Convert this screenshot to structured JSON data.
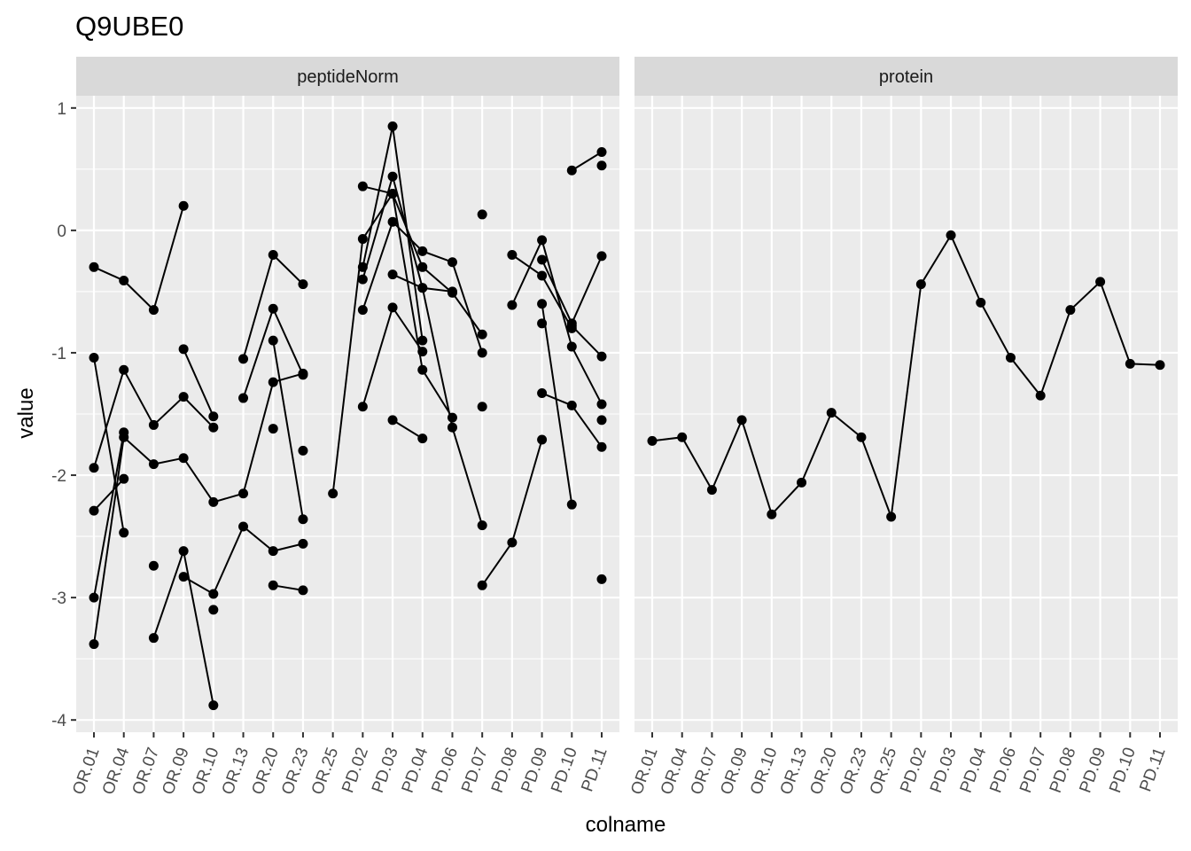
{
  "chart_data": {
    "type": "line",
    "title": "Q9UBE0",
    "xlabel": "colname",
    "ylabel": "value",
    "ylim": [
      -4.1,
      1.1
    ],
    "yticks": [
      1,
      0,
      -1,
      -2,
      -3,
      -4
    ],
    "ytick_labels": [
      "1",
      "0",
      "-1",
      "-2",
      "-3",
      "-4"
    ],
    "categories": [
      "OR.01",
      "OR.04",
      "OR.07",
      "OR.09",
      "OR.10",
      "OR.13",
      "OR.20",
      "OR.23",
      "OR.25",
      "PD.02",
      "PD.03",
      "PD.04",
      "PD.06",
      "PD.07",
      "PD.08",
      "PD.09",
      "PD.10",
      "PD.11"
    ],
    "grid": true,
    "legend": "none",
    "colors": {
      "panel_bg": "#ebebeb",
      "strip_bg": "#d9d9d9",
      "grid": "#ffffff",
      "series": "#000000"
    },
    "panels": [
      {
        "name": "peptideNorm",
        "series": [
          {
            "values": [
              -0.3,
              -0.41,
              -0.65,
              0.2,
              null,
              null,
              null,
              null,
              null,
              null,
              null,
              null,
              null,
              null,
              null,
              null,
              null,
              null
            ]
          },
          {
            "values": [
              -1.04,
              -2.47,
              null,
              null,
              null,
              null,
              null,
              null,
              null,
              null,
              null,
              null,
              null,
              null,
              null,
              null,
              null,
              null
            ]
          },
          {
            "values": [
              -1.94,
              -1.14,
              -1.59,
              -1.36,
              -1.61,
              null,
              null,
              null,
              null,
              null,
              null,
              null,
              null,
              null,
              null,
              null,
              null,
              null
            ]
          },
          {
            "values": [
              -2.29,
              -2.03,
              null,
              null,
              null,
              null,
              null,
              null,
              null,
              null,
              null,
              null,
              null,
              null,
              null,
              null,
              null,
              null
            ]
          },
          {
            "values": [
              -3.0,
              -1.65,
              null,
              null,
              null,
              null,
              null,
              null,
              null,
              null,
              null,
              null,
              null,
              null,
              null,
              null,
              null,
              null
            ]
          },
          {
            "values": [
              -3.38,
              -1.69,
              -1.91,
              -1.86,
              -2.22,
              -2.15,
              -1.24,
              -1.17,
              null,
              null,
              null,
              null,
              null,
              null,
              null,
              null,
              null,
              null
            ]
          },
          {
            "values": [
              null,
              null,
              -2.74,
              null,
              null,
              null,
              null,
              null,
              null,
              null,
              null,
              null,
              null,
              null,
              null,
              null,
              null,
              null
            ]
          },
          {
            "values": [
              null,
              null,
              -3.33,
              -2.62,
              -3.88,
              null,
              null,
              null,
              null,
              null,
              null,
              null,
              null,
              null,
              null,
              null,
              null,
              null
            ]
          },
          {
            "values": [
              null,
              null,
              null,
              -0.97,
              -1.52,
              null,
              null,
              null,
              null,
              null,
              null,
              null,
              null,
              null,
              null,
              null,
              null,
              null
            ]
          },
          {
            "values": [
              null,
              null,
              null,
              -2.83,
              -2.97,
              -2.42,
              -2.62,
              -2.56,
              null,
              null,
              null,
              null,
              null,
              null,
              null,
              null,
              null,
              null
            ]
          },
          {
            "values": [
              null,
              null,
              null,
              null,
              -3.1,
              null,
              null,
              null,
              null,
              null,
              null,
              null,
              null,
              null,
              null,
              null,
              null,
              null
            ]
          },
          {
            "values": [
              null,
              null,
              null,
              null,
              null,
              -1.05,
              -0.2,
              -0.44,
              null,
              null,
              null,
              null,
              null,
              null,
              null,
              null,
              null,
              null
            ]
          },
          {
            "values": [
              null,
              null,
              null,
              null,
              null,
              -1.37,
              -0.64,
              -1.18,
              null,
              null,
              null,
              null,
              null,
              null,
              null,
              null,
              null,
              null
            ]
          },
          {
            "values": [
              null,
              null,
              null,
              null,
              null,
              null,
              -0.9,
              -2.36,
              null,
              null,
              null,
              null,
              null,
              null,
              null,
              null,
              null,
              null
            ]
          },
          {
            "values": [
              null,
              null,
              null,
              null,
              null,
              null,
              -1.62,
              null,
              null,
              null,
              null,
              null,
              null,
              null,
              null,
              null,
              null,
              null
            ]
          },
          {
            "values": [
              null,
              null,
              null,
              null,
              null,
              null,
              -2.9,
              -2.94,
              null,
              null,
              null,
              null,
              null,
              null,
              null,
              null,
              null,
              null
            ]
          },
          {
            "values": [
              null,
              null,
              null,
              null,
              null,
              null,
              null,
              -1.8,
              null,
              null,
              null,
              null,
              null,
              null,
              null,
              null,
              null,
              null
            ]
          },
          {
            "values": [
              null,
              null,
              null,
              null,
              null,
              null,
              null,
              null,
              -2.15,
              -0.07,
              0.3,
              -0.3,
              -0.51,
              -0.85,
              null,
              null,
              null,
              null
            ]
          },
          {
            "values": [
              null,
              null,
              null,
              null,
              null,
              null,
              null,
              null,
              null,
              0.36,
              0.3,
              -1.14,
              -1.53,
              null,
              null,
              null,
              null,
              null
            ]
          },
          {
            "values": [
              null,
              null,
              null,
              null,
              null,
              null,
              null,
              null,
              null,
              -0.3,
              0.85,
              -0.9,
              null,
              null,
              null,
              null,
              null,
              null
            ]
          },
          {
            "values": [
              null,
              null,
              null,
              null,
              null,
              null,
              null,
              null,
              null,
              -0.4,
              0.44,
              -0.47,
              -0.5,
              null,
              null,
              null,
              null,
              null
            ]
          },
          {
            "values": [
              null,
              null,
              null,
              null,
              null,
              null,
              null,
              null,
              null,
              -0.65,
              0.07,
              -0.17,
              -0.26,
              -1.0,
              null,
              null,
              null,
              null
            ]
          },
          {
            "values": [
              null,
              null,
              null,
              null,
              null,
              null,
              null,
              null,
              null,
              -1.44,
              -0.63,
              -0.99,
              null,
              null,
              null,
              null,
              null,
              null
            ]
          },
          {
            "values": [
              null,
              null,
              null,
              null,
              null,
              null,
              null,
              null,
              null,
              null,
              -0.36,
              -0.47,
              -1.61,
              -2.41,
              null,
              null,
              null,
              null
            ]
          },
          {
            "values": [
              null,
              null,
              null,
              null,
              null,
              null,
              null,
              null,
              null,
              null,
              -1.55,
              -1.7,
              null,
              null,
              null,
              null,
              null,
              null
            ]
          },
          {
            "values": [
              null,
              null,
              null,
              null,
              null,
              null,
              null,
              null,
              null,
              null,
              null,
              null,
              null,
              0.13,
              null,
              null,
              null,
              null
            ]
          },
          {
            "values": [
              null,
              null,
              null,
              null,
              null,
              null,
              null,
              null,
              null,
              null,
              null,
              null,
              null,
              -1.44,
              null,
              null,
              null,
              null
            ]
          },
          {
            "values": [
              null,
              null,
              null,
              null,
              null,
              null,
              null,
              null,
              null,
              null,
              null,
              null,
              null,
              -2.9,
              -2.55,
              -1.71,
              null,
              null
            ]
          },
          {
            "values": [
              null,
              null,
              null,
              null,
              null,
              null,
              null,
              null,
              null,
              null,
              null,
              null,
              null,
              null,
              -0.2,
              -0.37,
              -0.8,
              null
            ]
          },
          {
            "values": [
              null,
              null,
              null,
              null,
              null,
              null,
              null,
              null,
              null,
              null,
              null,
              null,
              null,
              null,
              -0.61,
              -0.08,
              -0.95,
              -1.42
            ]
          },
          {
            "values": [
              null,
              null,
              null,
              null,
              null,
              null,
              null,
              null,
              null,
              null,
              null,
              null,
              null,
              null,
              null,
              -0.24,
              -0.76,
              -0.21
            ]
          },
          {
            "values": [
              null,
              null,
              null,
              null,
              null,
              null,
              null,
              null,
              null,
              null,
              null,
              null,
              null,
              null,
              null,
              -0.6,
              -2.24,
              null
            ]
          },
          {
            "values": [
              null,
              null,
              null,
              null,
              null,
              null,
              null,
              null,
              null,
              null,
              null,
              null,
              null,
              null,
              null,
              -0.76,
              null,
              null
            ]
          },
          {
            "values": [
              null,
              null,
              null,
              null,
              null,
              null,
              null,
              null,
              null,
              null,
              null,
              null,
              null,
              null,
              null,
              -1.33,
              -1.43,
              -1.77
            ]
          },
          {
            "values": [
              null,
              null,
              null,
              null,
              null,
              null,
              null,
              null,
              null,
              null,
              null,
              null,
              null,
              null,
              null,
              null,
              0.49,
              0.64
            ]
          },
          {
            "values": [
              null,
              null,
              null,
              null,
              null,
              null,
              null,
              null,
              null,
              null,
              null,
              null,
              null,
              null,
              null,
              null,
              -0.78,
              -1.03
            ]
          },
          {
            "values": [
              null,
              null,
              null,
              null,
              null,
              null,
              null,
              null,
              null,
              null,
              null,
              null,
              null,
              null,
              null,
              null,
              null,
              0.53
            ]
          },
          {
            "values": [
              null,
              null,
              null,
              null,
              null,
              null,
              null,
              null,
              null,
              null,
              null,
              null,
              null,
              null,
              null,
              null,
              null,
              -1.55
            ]
          },
          {
            "values": [
              null,
              null,
              null,
              null,
              null,
              null,
              null,
              null,
              null,
              null,
              null,
              null,
              null,
              null,
              null,
              null,
              null,
              -2.85
            ]
          }
        ]
      },
      {
        "name": "protein",
        "series": [
          {
            "values": [
              -1.72,
              -1.69,
              -2.12,
              -1.55,
              -2.32,
              -2.06,
              -1.49,
              -1.69,
              -2.34,
              -0.44,
              -0.04,
              -0.59,
              -1.04,
              -1.35,
              -0.65,
              -0.42,
              -1.09,
              -1.1
            ]
          }
        ]
      }
    ]
  }
}
